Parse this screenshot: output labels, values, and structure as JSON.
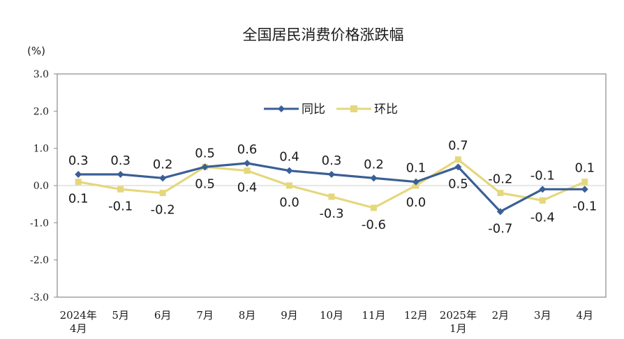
{
  "chart_data": {
    "type": "line",
    "title": "全国居民消费价格涨跌幅",
    "ylabel": "(%)",
    "xlabel": "",
    "ylim": [
      -3.0,
      3.0
    ],
    "yticks": [
      "3.0",
      "2.0",
      "1.0",
      "0.0",
      "-1.0",
      "-2.0",
      "-3.0"
    ],
    "categories": [
      [
        "2024年",
        "4月"
      ],
      [
        "5月"
      ],
      [
        "6月"
      ],
      [
        "7月"
      ],
      [
        "8月"
      ],
      [
        "9月"
      ],
      [
        "10月"
      ],
      [
        "11月"
      ],
      [
        "12月"
      ],
      [
        "2025年",
        "1月"
      ],
      [
        "2月"
      ],
      [
        "3月"
      ],
      [
        "4月"
      ]
    ],
    "legend_position": "top-center",
    "grid": false,
    "series": [
      {
        "name": "同比",
        "color": "#3a5f96",
        "values": [
          0.3,
          0.3,
          0.2,
          0.5,
          0.6,
          0.4,
          0.3,
          0.2,
          0.1,
          0.5,
          -0.7,
          -0.1,
          -0.1
        ],
        "labels": [
          "0.3",
          "0.3",
          "0.2",
          "0.5",
          "0.6",
          "0.4",
          "0.3",
          "0.2",
          "0.1",
          "0.5",
          "-0.7",
          "-0.1",
          "-0.1"
        ]
      },
      {
        "name": "环比",
        "color": "#e5d77c",
        "values": [
          0.1,
          -0.1,
          -0.2,
          0.5,
          0.4,
          0.0,
          -0.3,
          -0.6,
          0.0,
          0.7,
          -0.2,
          -0.4,
          0.1
        ],
        "labels": [
          "0.1",
          "-0.1",
          "-0.2",
          "0.5",
          "0.4",
          "0.0",
          "-0.3",
          "-0.6",
          "0.0",
          "0.7",
          "-0.2",
          "-0.4",
          "0.1"
        ]
      }
    ]
  }
}
